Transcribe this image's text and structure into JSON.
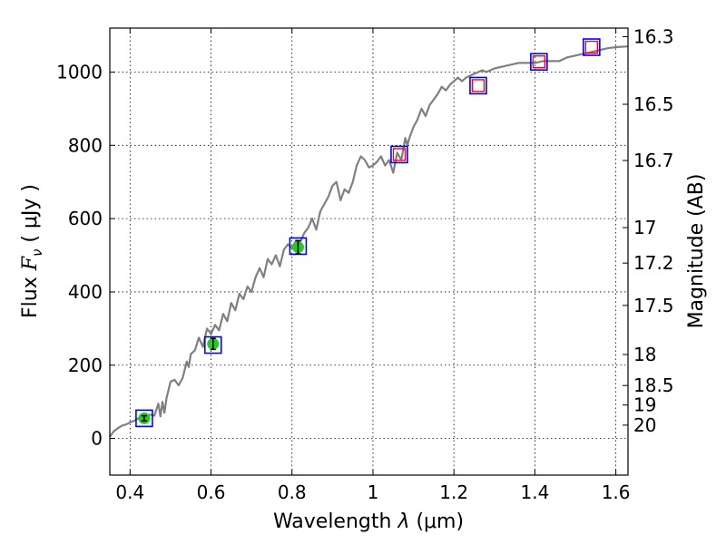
{
  "chart_data": {
    "type": "scatter",
    "xlabel_prefix": "Wavelength  ",
    "xlabel_symbol": "λ",
    "xlabel_unit": " (μm)",
    "ylabel_prefix": "Flux  ",
    "ylabel_symbol": "F",
    "ylabel_sub": "ν",
    "ylabel_unit": "  ( μJy )",
    "y2label": "Magnitude (AB)",
    "xlim": [
      0.35,
      1.63
    ],
    "ylim": [
      -100,
      1120
    ],
    "x_ticks": [
      0.4,
      0.6,
      0.8,
      1.0,
      1.2,
      1.4,
      1.6
    ],
    "x_tick_labels": [
      "0.4",
      "0.6",
      "0.8",
      "1",
      "1.2",
      "1.4",
      "1.6"
    ],
    "y_ticks": [
      0,
      200,
      400,
      600,
      800,
      1000
    ],
    "y_tick_labels": [
      "0",
      "200",
      "400",
      "600",
      "800",
      "1000"
    ],
    "mag_ticks": [
      16.3,
      16.5,
      16.7,
      17,
      17.2,
      17.5,
      18,
      18.5,
      19,
      20
    ],
    "mag_tick_labels": [
      "16.3",
      "16.5",
      "16.7",
      "17",
      "17.2",
      "17.5",
      "18",
      "18.5",
      "19",
      "20"
    ],
    "grid": true,
    "colors": {
      "spectrum": "#808080",
      "model_box": "#0000ff",
      "observed_fill": "#22cc22",
      "predicted_box": "#ff0000",
      "errorbar": "#000000"
    },
    "spectrum": {
      "name": "model spectrum",
      "x": [
        0.35,
        0.36,
        0.37,
        0.38,
        0.39,
        0.4,
        0.41,
        0.42,
        0.43,
        0.44,
        0.45,
        0.46,
        0.47,
        0.475,
        0.48,
        0.485,
        0.49,
        0.5,
        0.51,
        0.52,
        0.53,
        0.54,
        0.545,
        0.55,
        0.56,
        0.57,
        0.58,
        0.59,
        0.6,
        0.61,
        0.62,
        0.63,
        0.64,
        0.65,
        0.66,
        0.67,
        0.68,
        0.69,
        0.7,
        0.71,
        0.72,
        0.73,
        0.74,
        0.75,
        0.76,
        0.77,
        0.78,
        0.79,
        0.8,
        0.81,
        0.82,
        0.83,
        0.84,
        0.85,
        0.86,
        0.87,
        0.88,
        0.89,
        0.9,
        0.91,
        0.92,
        0.93,
        0.94,
        0.95,
        0.96,
        0.97,
        0.98,
        0.99,
        1.0,
        1.01,
        1.02,
        1.03,
        1.04,
        1.05,
        1.06,
        1.07,
        1.08,
        1.085,
        1.09,
        1.1,
        1.11,
        1.12,
        1.13,
        1.14,
        1.15,
        1.16,
        1.17,
        1.18,
        1.19,
        1.2,
        1.21,
        1.22,
        1.23,
        1.24,
        1.25,
        1.26,
        1.27,
        1.28,
        1.3,
        1.32,
        1.34,
        1.36,
        1.38,
        1.4,
        1.42,
        1.44,
        1.46,
        1.48,
        1.5,
        1.52,
        1.54,
        1.56,
        1.58,
        1.6,
        1.63
      ],
      "y": [
        5,
        20,
        28,
        35,
        38,
        44,
        48,
        55,
        58,
        60,
        65,
        62,
        95,
        60,
        100,
        70,
        110,
        155,
        160,
        145,
        165,
        210,
        195,
        230,
        240,
        275,
        250,
        300,
        285,
        310,
        295,
        340,
        320,
        370,
        350,
        395,
        380,
        415,
        400,
        440,
        465,
        440,
        490,
        475,
        500,
        470,
        515,
        530,
        520,
        540,
        535,
        560,
        575,
        600,
        570,
        620,
        640,
        660,
        690,
        700,
        650,
        680,
        670,
        700,
        745,
        770,
        760,
        740,
        745,
        755,
        770,
        745,
        760,
        725,
        780,
        760,
        820,
        800,
        820,
        850,
        870,
        900,
        880,
        910,
        925,
        940,
        960,
        950,
        965,
        975,
        985,
        975,
        985,
        990,
        995,
        1000,
        1005,
        1000,
        1010,
        1015,
        1020,
        1025,
        1025,
        1025,
        1030,
        1030,
        1030,
        1040,
        1045,
        1050,
        1055,
        1060,
        1065,
        1068,
        1070
      ]
    },
    "observed_points": {
      "name": "observed photometry",
      "x": [
        0.435,
        0.605,
        0.815
      ],
      "y": [
        55,
        258,
        522
      ],
      "yerr": [
        7,
        15,
        18
      ]
    },
    "model_points": {
      "name": "model synthetic photometry",
      "x": [
        0.435,
        0.605,
        0.815,
        1.065,
        1.26,
        1.41,
        1.54
      ],
      "y": [
        55,
        255,
        525,
        775,
        963,
        1028,
        1068
      ]
    },
    "predicted_points": {
      "name": "predicted photometry",
      "x": [
        1.065,
        1.26,
        1.41,
        1.54
      ],
      "y": [
        775,
        963,
        1028,
        1068
      ]
    }
  }
}
